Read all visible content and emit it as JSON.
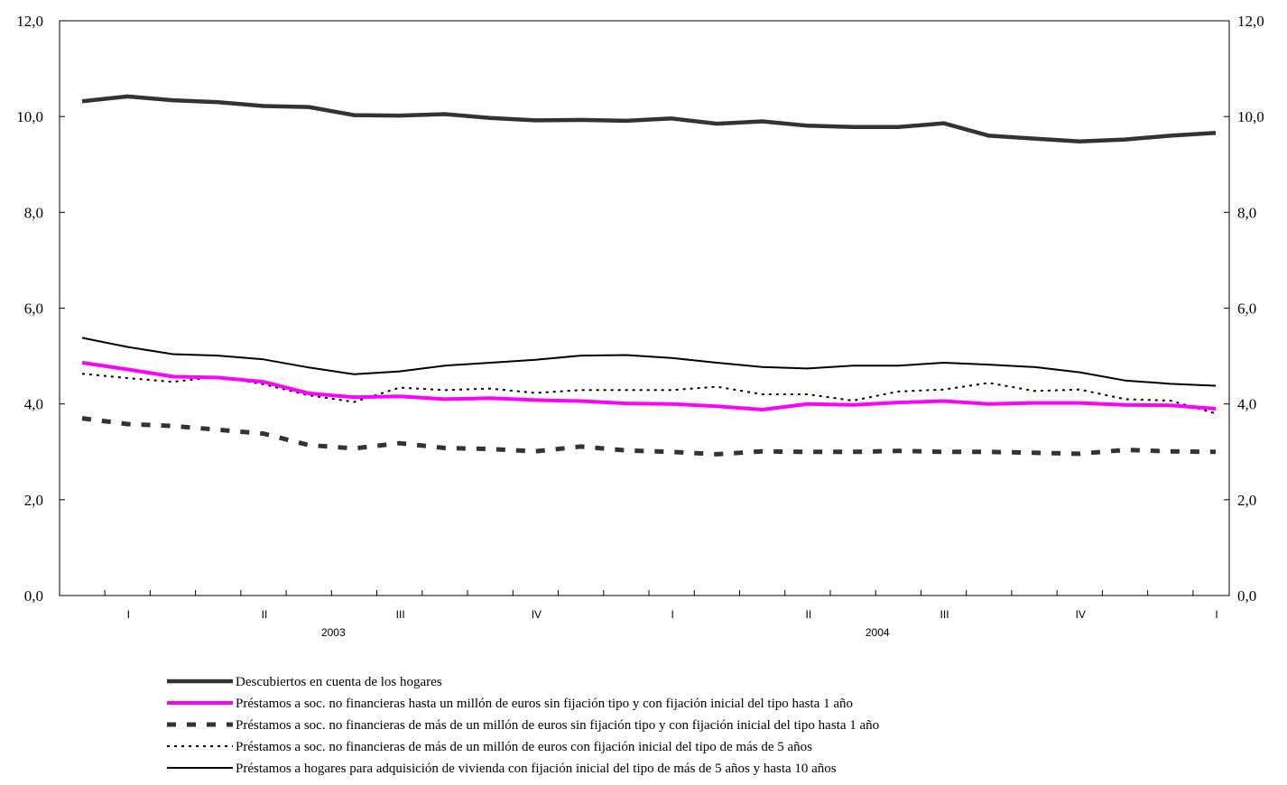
{
  "chart_data": {
    "type": "line",
    "xlabel": "",
    "ylabel": "",
    "ylim": [
      0,
      12
    ],
    "yticks": [
      "0,0",
      "2,0",
      "4,0",
      "6,0",
      "8,0",
      "10,0",
      "12,0"
    ],
    "yticks_right": [
      "0,0",
      "2,0",
      "4,0",
      "6,0",
      "8,0",
      "10,0",
      "12,0"
    ],
    "grid": false,
    "legend_placement": "bottom",
    "x_count": 26,
    "quarter_labels": [
      {
        "index": 1,
        "label": "I"
      },
      {
        "index": 4,
        "label": "II"
      },
      {
        "index": 7,
        "label": "III"
      },
      {
        "index": 10,
        "label": "IV"
      },
      {
        "index": 13,
        "label": "I"
      },
      {
        "index": 16,
        "label": "II"
      },
      {
        "index": 19,
        "label": "III"
      },
      {
        "index": 22,
        "label": "IV"
      },
      {
        "index": 25,
        "label": "I"
      }
    ],
    "year_labels": [
      {
        "index": 5,
        "label": "2003"
      },
      {
        "index": 17,
        "label": "2004"
      }
    ],
    "series": [
      {
        "name": "Descubiertos en cuenta de los hogares",
        "color": "#333333",
        "style": "thick",
        "values": [
          10.32,
          10.42,
          10.34,
          10.3,
          10.22,
          10.2,
          10.03,
          10.02,
          10.05,
          9.97,
          9.92,
          9.93,
          9.91,
          9.96,
          9.85,
          9.9,
          9.81,
          9.78,
          9.78,
          9.86,
          9.6,
          9.54,
          9.48,
          9.52,
          9.6,
          9.66
        ]
      },
      {
        "name": "Préstamos a soc. no financieras hasta un millón de euros sin fijación tipo y con fijación inicial del tipo hasta 1 año",
        "color": "#ff00ff",
        "style": "magenta",
        "values": [
          4.86,
          4.72,
          4.57,
          4.55,
          4.46,
          4.22,
          4.14,
          4.16,
          4.1,
          4.12,
          4.08,
          4.06,
          4.01,
          4.0,
          3.95,
          3.88,
          4.0,
          3.98,
          4.03,
          4.06,
          4.0,
          4.02,
          4.02,
          3.98,
          3.97,
          3.9
        ]
      },
      {
        "name": "Préstamos a soc. no financieras de más de un millón de euros sin fijación tipo y con fijación inicial del tipo hasta 1 año",
        "color": "#333333",
        "style": "dashed",
        "values": [
          3.7,
          3.58,
          3.54,
          3.46,
          3.38,
          3.14,
          3.07,
          3.18,
          3.08,
          3.06,
          3.01,
          3.11,
          3.03,
          3.0,
          2.95,
          3.01,
          3.0,
          3.0,
          3.02,
          3.0,
          3.0,
          2.98,
          2.96,
          3.04,
          3.01,
          3.0
        ]
      },
      {
        "name": "Préstamos a soc. no financieras de más de un millón de euros con fijación inicial del tipo de más de 5 años",
        "color": "#000000",
        "style": "dotted",
        "values": [
          4.63,
          4.54,
          4.46,
          4.57,
          4.41,
          4.18,
          4.04,
          4.34,
          4.29,
          4.32,
          4.23,
          4.29,
          4.29,
          4.29,
          4.36,
          4.2,
          4.2,
          4.07,
          4.26,
          4.3,
          4.44,
          4.27,
          4.3,
          4.1,
          4.07,
          3.8
        ]
      },
      {
        "name": "Préstamos a hogares para adquisición de vivienda con fijación inicial del tipo de más de 5 años y hasta 10 años",
        "color": "#000000",
        "style": "thin",
        "values": [
          5.38,
          5.19,
          5.04,
          5.01,
          4.93,
          4.76,
          4.62,
          4.68,
          4.8,
          4.86,
          4.92,
          5.01,
          5.02,
          4.96,
          4.86,
          4.77,
          4.74,
          4.8,
          4.8,
          4.86,
          4.82,
          4.77,
          4.66,
          4.49,
          4.42,
          4.38
        ]
      }
    ]
  }
}
